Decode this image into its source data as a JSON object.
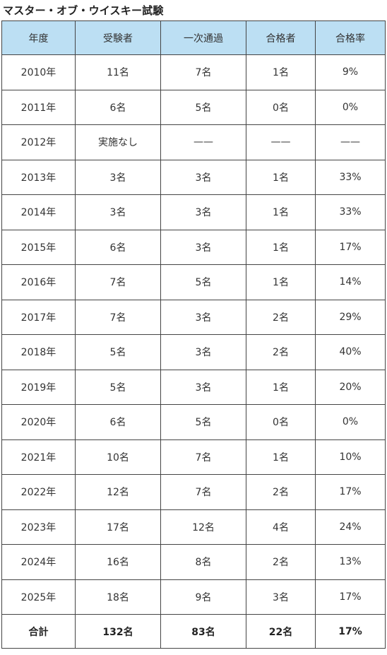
{
  "title": "マスター・オブ・ウイスキー試験",
  "table": {
    "headers": [
      "年度",
      "受験者",
      "一次通過",
      "合格者",
      "合格率"
    ],
    "rows": [
      [
        "2010年",
        "11名",
        "7名",
        "1名",
        "9%"
      ],
      [
        "2011年",
        "6名",
        "5名",
        "0名",
        "0%"
      ],
      [
        "2012年",
        "実施なし",
        "——",
        "——",
        "——"
      ],
      [
        "2013年",
        "3名",
        "3名",
        "1名",
        "33%"
      ],
      [
        "2014年",
        "3名",
        "3名",
        "1名",
        "33%"
      ],
      [
        "2015年",
        "6名",
        "3名",
        "1名",
        "17%"
      ],
      [
        "2016年",
        "7名",
        "5名",
        "1名",
        "14%"
      ],
      [
        "2017年",
        "7名",
        "3名",
        "2名",
        "29%"
      ],
      [
        "2018年",
        "5名",
        "3名",
        "2名",
        "40%"
      ],
      [
        "2019年",
        "5名",
        "3名",
        "1名",
        "20%"
      ],
      [
        "2020年",
        "6名",
        "5名",
        "0名",
        "0%"
      ],
      [
        "2021年",
        "10名",
        "7名",
        "1名",
        "10%"
      ],
      [
        "2022年",
        "12名",
        "7名",
        "2名",
        "17%"
      ],
      [
        "2023年",
        "17名",
        "12名",
        "4名",
        "24%"
      ],
      [
        "2024年",
        "16名",
        "8名",
        "2名",
        "13%"
      ],
      [
        "2025年",
        "18名",
        "9名",
        "3名",
        "17%"
      ]
    ],
    "total": [
      "合計",
      "132名",
      "83名",
      "22名",
      "17%"
    ]
  },
  "colors": {
    "header_background": "#bcdff3",
    "border": "#444444",
    "text": "#333333"
  }
}
